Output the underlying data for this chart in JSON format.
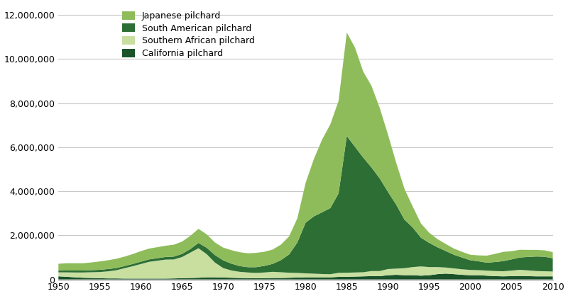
{
  "years": [
    1950,
    1951,
    1952,
    1953,
    1954,
    1955,
    1956,
    1957,
    1958,
    1959,
    1960,
    1961,
    1962,
    1963,
    1964,
    1965,
    1966,
    1967,
    1968,
    1969,
    1970,
    1971,
    1972,
    1973,
    1974,
    1975,
    1976,
    1977,
    1978,
    1979,
    1980,
    1981,
    1982,
    1983,
    1984,
    1985,
    1986,
    1987,
    1988,
    1989,
    1990,
    1991,
    1992,
    1993,
    1994,
    1995,
    1996,
    1997,
    1998,
    1999,
    2000,
    2001,
    2002,
    2003,
    2004,
    2005,
    2006,
    2007,
    2008,
    2009,
    2010
  ],
  "japanese_pilchard": [
    310000,
    330000,
    330000,
    330000,
    350000,
    380000,
    400000,
    420000,
    430000,
    450000,
    480000,
    490000,
    500000,
    510000,
    540000,
    560000,
    600000,
    640000,
    610000,
    570000,
    580000,
    610000,
    630000,
    630000,
    650000,
    640000,
    650000,
    700000,
    820000,
    1100000,
    1800000,
    2600000,
    3300000,
    3800000,
    4200000,
    4700000,
    4500000,
    3900000,
    3700000,
    3200000,
    2600000,
    1900000,
    1400000,
    950000,
    650000,
    460000,
    370000,
    320000,
    280000,
    260000,
    250000,
    270000,
    320000,
    370000,
    420000,
    370000,
    350000,
    320000,
    300000,
    290000,
    280000
  ],
  "south_american_pilchard": [
    80000,
    85000,
    90000,
    90000,
    95000,
    100000,
    105000,
    100000,
    95000,
    100000,
    105000,
    110000,
    115000,
    120000,
    130000,
    140000,
    160000,
    240000,
    290000,
    340000,
    350000,
    310000,
    260000,
    240000,
    260000,
    300000,
    360000,
    550000,
    830000,
    1380000,
    2300000,
    2600000,
    2800000,
    3000000,
    3600000,
    6200000,
    5700000,
    5200000,
    4700000,
    4200000,
    3500000,
    2900000,
    2200000,
    1800000,
    1300000,
    1100000,
    900000,
    750000,
    620000,
    530000,
    440000,
    400000,
    360000,
    410000,
    460000,
    510000,
    560000,
    610000,
    660000,
    660000,
    600000
  ],
  "southern_african_pilchard": [
    180000,
    200000,
    220000,
    240000,
    260000,
    280000,
    320000,
    370000,
    470000,
    560000,
    660000,
    760000,
    810000,
    860000,
    860000,
    960000,
    1150000,
    1340000,
    1050000,
    670000,
    430000,
    330000,
    280000,
    260000,
    240000,
    260000,
    280000,
    260000,
    230000,
    210000,
    180000,
    165000,
    150000,
    140000,
    185000,
    185000,
    185000,
    185000,
    230000,
    230000,
    280000,
    280000,
    320000,
    370000,
    420000,
    370000,
    320000,
    275000,
    260000,
    250000,
    240000,
    230000,
    230000,
    230000,
    230000,
    250000,
    275000,
    260000,
    240000,
    230000,
    220000
  ],
  "california_pilchard": [
    140000,
    120000,
    95000,
    75000,
    65000,
    55000,
    45000,
    45000,
    38000,
    38000,
    38000,
    38000,
    38000,
    38000,
    45000,
    55000,
    65000,
    75000,
    95000,
    95000,
    85000,
    75000,
    65000,
    55000,
    55000,
    55000,
    65000,
    65000,
    75000,
    85000,
    95000,
    95000,
    95000,
    95000,
    115000,
    120000,
    130000,
    140000,
    150000,
    150000,
    190000,
    210000,
    190000,
    190000,
    170000,
    190000,
    240000,
    265000,
    240000,
    210000,
    190000,
    190000,
    170000,
    150000,
    140000,
    150000,
    160000,
    150000,
    140000,
    140000,
    140000
  ],
  "colors": {
    "japanese_pilchard": "#8fbc5a",
    "south_american_pilchard": "#2d6e35",
    "southern_african_pilchard": "#c8dfa0",
    "california_pilchard": "#1a5229"
  },
  "legend_labels": [
    "Japanese pilchard",
    "South American pilchard",
    "Southern African pilchard",
    "California pilchard"
  ],
  "ylim": [
    0,
    12500000
  ],
  "yticks": [
    0,
    2000000,
    4000000,
    6000000,
    8000000,
    10000000,
    12000000
  ],
  "ytick_labels": [
    "0",
    "2,000,000",
    "4,000,000",
    "6,000,000",
    "8,000,000",
    "10,000,000",
    "12,000,000"
  ],
  "xticks": [
    1950,
    1955,
    1960,
    1965,
    1970,
    1975,
    1980,
    1985,
    1990,
    1995,
    2000,
    2005,
    2010
  ],
  "background_color": "#ffffff",
  "grid_color": "#c8c8c8"
}
